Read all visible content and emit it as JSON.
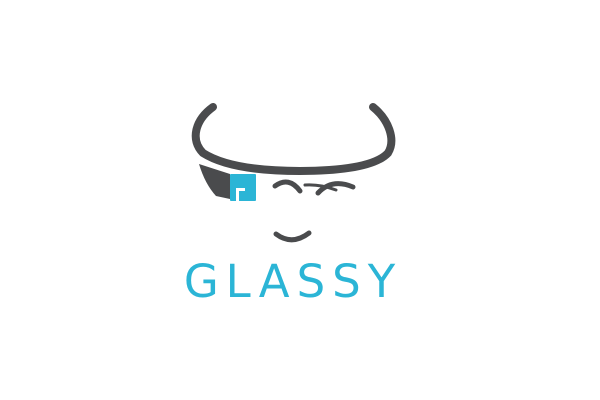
{
  "logo": {
    "name": "Glassy",
    "wordmark": "GLASSY",
    "colors": {
      "accent": "#2bb5d6",
      "frame": "#4a4b4d",
      "background": "#ffffff"
    },
    "icons": [
      "glasses-frame-icon",
      "glass-prism-icon",
      "winking-face-icon"
    ]
  }
}
